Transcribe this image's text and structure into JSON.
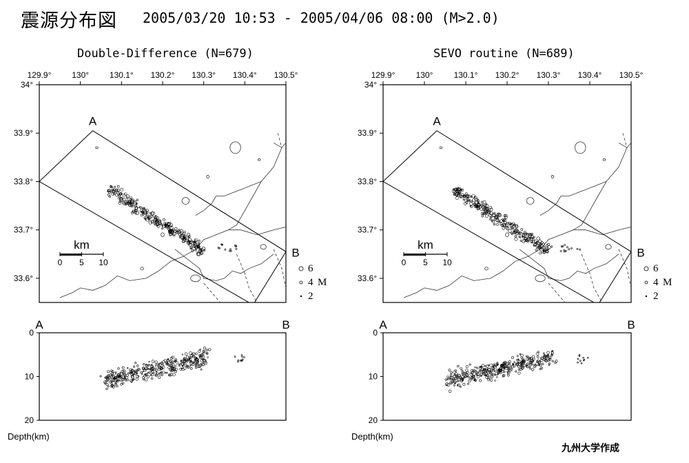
{
  "header": {
    "title": "震源分布図",
    "range": "2005/03/20 10:53 - 2005/04/06 08:00 (M>2.0)"
  },
  "lon_ticks": [
    "129.9°",
    "130°",
    "130.1°",
    "130.2°",
    "130.3°",
    "130.4°",
    "130.5°"
  ],
  "lat_ticks": [
    "34°",
    "33.9°",
    "33.8°",
    "33.7°",
    "33.6°"
  ],
  "depth_ticks": [
    "0",
    "10",
    "20"
  ],
  "depth_axis_label": "Depth(km)",
  "section_labels": {
    "start": "A",
    "end": "B"
  },
  "scale_bar": {
    "unit": "km",
    "ticks": [
      "0",
      "5",
      "10"
    ]
  },
  "magnitude_legend": {
    "sizes": [
      "6",
      "4",
      "2"
    ],
    "label": "M"
  },
  "panels": [
    {
      "id": "dd",
      "title": "Double-Difference (N=679)"
    },
    {
      "id": "sevo",
      "title": "SEVO routine (N=689)"
    }
  ],
  "map_extent": {
    "lon": [
      129.9,
      130.5
    ],
    "lat": [
      33.55,
      34.0
    ]
  },
  "cross_section": {
    "A": [
      130.03,
      33.905
    ],
    "B": [
      130.5,
      33.655
    ],
    "C": [
      130.42,
      33.545
    ],
    "D": [
      129.9,
      33.8
    ],
    "depth_range_km": [
      0,
      20
    ]
  },
  "colors": {
    "ink": "#000000",
    "background": "#ffffff"
  },
  "credit": "九州大学作成"
}
